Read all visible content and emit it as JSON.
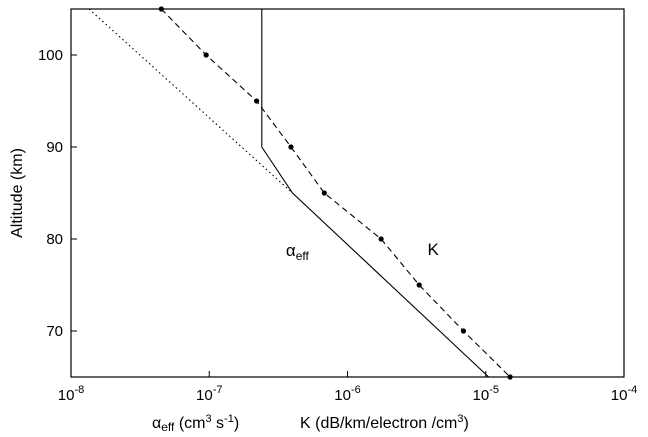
{
  "chart_data": {
    "type": "line",
    "x_scale": "log",
    "xlim": [
      1e-08,
      0.0001
    ],
    "ylim": [
      65,
      105
    ],
    "grid": false,
    "ylabel": "Altitude (km)",
    "xlabel_parts": {
      "alpha_symbol": "α",
      "alpha_sub": "eff",
      "alpha_units_a": " (cm",
      "alpha_units_sup1": "3",
      "alpha_units_b": " s",
      "alpha_units_sup2": "-1",
      "alpha_units_c": ")",
      "k_units": "K (dB/km/electron /cm",
      "k_units_sup": "3",
      "k_units_end": ")"
    },
    "x_ticks": [
      {
        "value": 1e-08,
        "base": "10",
        "exp": "-8"
      },
      {
        "value": 1e-07,
        "base": "10",
        "exp": "-7"
      },
      {
        "value": 1e-06,
        "base": "10",
        "exp": "-6"
      },
      {
        "value": 1e-05,
        "base": "10",
        "exp": "-5"
      },
      {
        "value": 0.0001,
        "base": "10",
        "exp": "-4"
      }
    ],
    "y_ticks": [
      {
        "value": 70,
        "label": "70"
      },
      {
        "value": 80,
        "label": "80"
      },
      {
        "value": 90,
        "label": "90"
      },
      {
        "value": 100,
        "label": "100"
      }
    ],
    "series": [
      {
        "id": "alpha_eff",
        "style": "solid",
        "points": [
          {
            "x": 2.4e-07,
            "y": 105
          },
          {
            "x": 2.4e-07,
            "y": 90
          },
          {
            "x": 4e-07,
            "y": 85
          },
          {
            "x": 1.05e-05,
            "y": 65
          }
        ]
      },
      {
        "id": "alpha_extrapolation",
        "style": "dotted",
        "points": [
          {
            "x": 1.35e-08,
            "y": 105
          },
          {
            "x": 4e-07,
            "y": 85
          }
        ]
      },
      {
        "id": "K",
        "style": "dashed",
        "markers": true,
        "points": [
          {
            "x": 4.5e-08,
            "y": 105
          },
          {
            "x": 9.5e-08,
            "y": 100
          },
          {
            "x": 2.2e-07,
            "y": 95
          },
          {
            "x": 3.9e-07,
            "y": 90
          },
          {
            "x": 6.8e-07,
            "y": 85
          },
          {
            "x": 1.75e-06,
            "y": 80
          },
          {
            "x": 3.3e-06,
            "y": 75
          },
          {
            "x": 6.9e-06,
            "y": 70
          },
          {
            "x": 1.5e-05,
            "y": 65
          }
        ]
      }
    ],
    "annotations": {
      "alpha_label": {
        "symbol": "α",
        "sub": "eff",
        "anchor_x": 5e-07,
        "anchor_y": 79
      },
      "k_label": {
        "text": "K",
        "anchor_x": 2.3e-06,
        "anchor_y": 79
      }
    }
  }
}
